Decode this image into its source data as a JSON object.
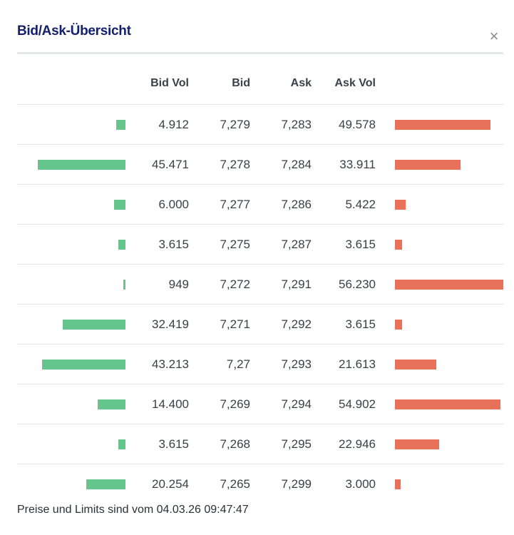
{
  "dialog": {
    "title": "Bid/Ask-Übersicht",
    "close_label": "×"
  },
  "table": {
    "headers": {
      "bid_vol": "Bid Vol",
      "bid": "Bid",
      "ask": "Ask",
      "ask_vol": "Ask Vol"
    },
    "rows": [
      {
        "bid_vol": "4.912",
        "bid": "7,279",
        "ask": "7,283",
        "ask_vol": "49.578",
        "bid_vol_num": 4912,
        "ask_vol_num": 49578
      },
      {
        "bid_vol": "45.471",
        "bid": "7,278",
        "ask": "7,284",
        "ask_vol": "33.911",
        "bid_vol_num": 45471,
        "ask_vol_num": 33911
      },
      {
        "bid_vol": "6.000",
        "bid": "7,277",
        "ask": "7,286",
        "ask_vol": "5.422",
        "bid_vol_num": 6000,
        "ask_vol_num": 5422
      },
      {
        "bid_vol": "3.615",
        "bid": "7,275",
        "ask": "7,287",
        "ask_vol": "3.615",
        "bid_vol_num": 3615,
        "ask_vol_num": 3615
      },
      {
        "bid_vol": "949",
        "bid": "7,272",
        "ask": "7,291",
        "ask_vol": "56.230",
        "bid_vol_num": 949,
        "ask_vol_num": 56230
      },
      {
        "bid_vol": "32.419",
        "bid": "7,271",
        "ask": "7,292",
        "ask_vol": "3.615",
        "bid_vol_num": 32419,
        "ask_vol_num": 3615
      },
      {
        "bid_vol": "43.213",
        "bid": "7,27",
        "ask": "7,293",
        "ask_vol": "21.613",
        "bid_vol_num": 43213,
        "ask_vol_num": 21613
      },
      {
        "bid_vol": "14.400",
        "bid": "7,269",
        "ask": "7,294",
        "ask_vol": "54.902",
        "bid_vol_num": 14400,
        "ask_vol_num": 54902
      },
      {
        "bid_vol": "3.615",
        "bid": "7,268",
        "ask": "7,295",
        "ask_vol": "22.946",
        "bid_vol_num": 3615,
        "ask_vol_num": 22946
      },
      {
        "bid_vol": "20.254",
        "bid": "7,265",
        "ask": "7,299",
        "ask_vol": "3.000",
        "bid_vol_num": 20254,
        "ask_vol_num": 3000
      }
    ]
  },
  "colors": {
    "bid_bar": "#66c58c",
    "ask_bar": "#e8715a",
    "title": "#14206b"
  },
  "footer": {
    "text": "Preise und Limits sind vom 04.03.26 09:47:47"
  }
}
